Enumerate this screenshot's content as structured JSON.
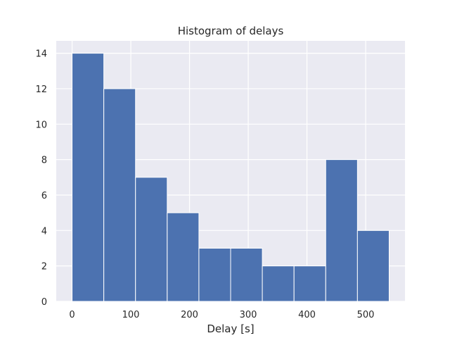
{
  "chart_data": {
    "type": "bar",
    "subtype": "histogram",
    "title": "Histogram of delays",
    "xlabel": "Delay [s]",
    "ylabel": "",
    "bins": [
      {
        "start": 0,
        "end": 54,
        "count": 14
      },
      {
        "start": 54,
        "end": 108,
        "count": 12
      },
      {
        "start": 108,
        "end": 162,
        "count": 7
      },
      {
        "start": 162,
        "end": 216,
        "count": 5
      },
      {
        "start": 216,
        "end": 270,
        "count": 3
      },
      {
        "start": 270,
        "end": 324,
        "count": 3
      },
      {
        "start": 324,
        "end": 378,
        "count": 2
      },
      {
        "start": 378,
        "end": 432,
        "count": 2
      },
      {
        "start": 432,
        "end": 486,
        "count": 8
      },
      {
        "start": 486,
        "end": 540,
        "count": 4
      }
    ],
    "xlim": [
      -27,
      567
    ],
    "ylim": [
      0,
      14.7
    ],
    "xticks": [
      0,
      100,
      200,
      300,
      400,
      500
    ],
    "yticks": [
      0,
      2,
      4,
      6,
      8,
      10,
      12,
      14
    ],
    "grid": true,
    "legend": "none",
    "bar_color": "#4c72b0",
    "background_color": "#eaeaf2",
    "grid_color": "#ffffff"
  }
}
